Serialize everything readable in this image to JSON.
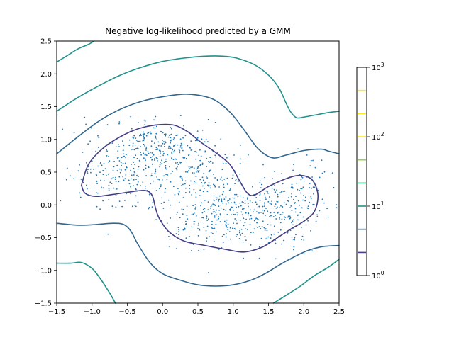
{
  "chart_data": {
    "type": "contour",
    "title": "Negative log-likelihood predicted by a GMM",
    "xlabel": "",
    "ylabel": "",
    "xlim": [
      -1.5,
      2.5
    ],
    "ylim": [
      -1.5,
      2.5
    ],
    "x_ticks": [
      -1.5,
      -1.0,
      -0.5,
      0.0,
      0.5,
      1.0,
      1.5,
      2.0,
      2.5
    ],
    "x_tick_labels": [
      "−1.5",
      "−1.0",
      "−0.5",
      "0.0",
      "0.5",
      "1.0",
      "1.5",
      "2.0",
      "2.5"
    ],
    "y_ticks": [
      -1.5,
      -1.0,
      -0.5,
      0.0,
      0.5,
      1.0,
      1.5,
      2.0,
      2.5
    ],
    "y_tick_labels": [
      "−1.5",
      "−1.0",
      "−0.5",
      "0.0",
      "0.5",
      "1.0",
      "1.5",
      "2.0",
      "2.5"
    ],
    "grid": false,
    "point_color": "#1f77b4",
    "contours": [
      {
        "level": 2.15,
        "color": "#433e85",
        "paths": [
          [
            [
              -1.15,
              0.3
            ],
            [
              -1.05,
              0.62
            ],
            [
              -0.85,
              0.86
            ],
            [
              -0.6,
              1.04
            ],
            [
              -0.35,
              1.16
            ],
            [
              -0.1,
              1.22
            ],
            [
              0.15,
              1.22
            ],
            [
              0.35,
              1.12
            ],
            [
              0.55,
              0.95
            ],
            [
              0.75,
              0.8
            ],
            [
              0.95,
              0.62
            ],
            [
              1.1,
              0.35
            ],
            [
              1.2,
              0.18
            ],
            [
              1.3,
              0.15
            ],
            [
              1.5,
              0.28
            ],
            [
              1.75,
              0.4
            ],
            [
              1.95,
              0.45
            ],
            [
              2.12,
              0.38
            ],
            [
              2.2,
              0.15
            ],
            [
              2.15,
              -0.1
            ],
            [
              2.0,
              -0.25
            ],
            [
              1.8,
              -0.38
            ],
            [
              1.6,
              -0.52
            ],
            [
              1.4,
              -0.65
            ],
            [
              1.15,
              -0.72
            ],
            [
              0.9,
              -0.68
            ],
            [
              0.6,
              -0.62
            ],
            [
              0.3,
              -0.55
            ],
            [
              0.08,
              -0.4
            ],
            [
              -0.05,
              -0.2
            ],
            [
              -0.1,
              -0.05
            ],
            [
              -0.15,
              0.15
            ],
            [
              -0.25,
              0.22
            ],
            [
              -0.45,
              0.2
            ],
            [
              -0.7,
              0.16
            ],
            [
              -0.95,
              0.13
            ],
            [
              -1.1,
              0.18
            ],
            [
              -1.15,
              0.3
            ]
          ]
        ]
      },
      {
        "level": 4.64,
        "color": "#31678e",
        "paths": [
          [
            [
              -1.5,
              0.78
            ],
            [
              -1.2,
              1.04
            ],
            [
              -0.9,
              1.28
            ],
            [
              -0.6,
              1.46
            ],
            [
              -0.3,
              1.58
            ],
            [
              0.0,
              1.65
            ],
            [
              0.35,
              1.69
            ],
            [
              0.7,
              1.62
            ],
            [
              0.95,
              1.42
            ],
            [
              1.15,
              1.15
            ],
            [
              1.35,
              0.86
            ],
            [
              1.55,
              0.72
            ],
            [
              1.75,
              0.76
            ],
            [
              2.0,
              0.83
            ],
            [
              2.25,
              0.85
            ],
            [
              2.35,
              0.82
            ],
            [
              2.5,
              0.78
            ]
          ],
          [
            [
              -1.5,
              -0.28
            ],
            [
              -1.2,
              -0.31
            ],
            [
              -0.95,
              -0.3
            ],
            [
              -0.7,
              -0.28
            ],
            [
              -0.55,
              -0.3
            ],
            [
              -0.45,
              -0.4
            ],
            [
              -0.35,
              -0.6
            ],
            [
              -0.18,
              -0.88
            ],
            [
              0.0,
              -1.05
            ],
            [
              0.25,
              -1.15
            ],
            [
              0.5,
              -1.22
            ],
            [
              0.75,
              -1.24
            ],
            [
              1.0,
              -1.22
            ],
            [
              1.25,
              -1.15
            ],
            [
              1.45,
              -1.05
            ],
            [
              1.65,
              -0.92
            ],
            [
              1.85,
              -0.8
            ],
            [
              2.05,
              -0.7
            ],
            [
              2.25,
              -0.64
            ],
            [
              2.5,
              -0.62
            ]
          ]
        ]
      },
      {
        "level": 10.0,
        "color": "#21918c",
        "paths": [
          [
            [
              -1.5,
              1.43
            ],
            [
              -1.2,
              1.64
            ],
            [
              -0.9,
              1.82
            ],
            [
              -0.6,
              1.98
            ],
            [
              -0.3,
              2.1
            ],
            [
              0.0,
              2.19
            ],
            [
              0.3,
              2.24
            ],
            [
              0.6,
              2.27
            ],
            [
              0.85,
              2.27
            ],
            [
              1.05,
              2.24
            ],
            [
              1.3,
              2.14
            ],
            [
              1.5,
              1.98
            ],
            [
              1.65,
              1.78
            ],
            [
              1.75,
              1.55
            ],
            [
              1.82,
              1.41
            ],
            [
              1.9,
              1.33
            ],
            [
              2.0,
              1.34
            ],
            [
              2.2,
              1.38
            ],
            [
              2.35,
              1.41
            ],
            [
              2.5,
              1.43
            ]
          ],
          [
            [
              -1.5,
              2.18
            ],
            [
              -1.35,
              2.28
            ],
            [
              -1.2,
              2.38
            ],
            [
              -1.05,
              2.45
            ],
            [
              -0.97,
              2.5
            ]
          ],
          [
            [
              -1.5,
              -0.89
            ],
            [
              -1.3,
              -0.89
            ],
            [
              -1.15,
              -0.88
            ],
            [
              -1.0,
              -0.97
            ],
            [
              -0.9,
              -1.1
            ],
            [
              -0.8,
              -1.26
            ],
            [
              -0.72,
              -1.4
            ],
            [
              -0.67,
              -1.5
            ]
          ],
          [
            [
              1.57,
              -1.5
            ],
            [
              1.75,
              -1.38
            ],
            [
              1.95,
              -1.24
            ],
            [
              2.15,
              -1.08
            ],
            [
              2.35,
              -0.95
            ],
            [
              2.5,
              -0.83
            ]
          ]
        ]
      }
    ],
    "scatter_clusters": [
      {
        "center": [
          -0.6,
          0.55
        ],
        "spread": [
          0.4,
          0.33
        ],
        "count": 230,
        "seed": 11
      },
      {
        "center": [
          -0.05,
          0.85
        ],
        "spread": [
          0.26,
          0.24
        ],
        "count": 160,
        "seed": 23
      },
      {
        "center": [
          0.45,
          0.5
        ],
        "spread": [
          0.32,
          0.32
        ],
        "count": 200,
        "seed": 37
      },
      {
        "center": [
          0.8,
          -0.2
        ],
        "spread": [
          0.38,
          0.26
        ],
        "count": 230,
        "seed": 41
      },
      {
        "center": [
          1.55,
          -0.15
        ],
        "spread": [
          0.35,
          0.32
        ],
        "count": 170,
        "seed": 53
      },
      {
        "center": [
          1.85,
          0.15
        ],
        "spread": [
          0.3,
          0.28
        ],
        "count": 110,
        "seed": 67
      }
    ],
    "colorbar": {
      "scale": "log",
      "range": [
        1,
        1000
      ],
      "levels": [
        {
          "value": 2.15,
          "color": "#433e85"
        },
        {
          "value": 4.64,
          "color": "#31678e"
        },
        {
          "value": 10.0,
          "color": "#21918c"
        },
        {
          "value": 21.5,
          "color": "#35b779"
        },
        {
          "value": 46.4,
          "color": "#8fd744"
        },
        {
          "value": 100.0,
          "color": "#fde725"
        },
        {
          "value": 215.4,
          "color": "#fde725"
        },
        {
          "value": 464.2,
          "color": "#fde725"
        }
      ],
      "ticks": [
        {
          "value": 1,
          "base": "10",
          "exp": "0"
        },
        {
          "value": 10,
          "base": "10",
          "exp": "1"
        },
        {
          "value": 100,
          "base": "10",
          "exp": "2"
        },
        {
          "value": 1000,
          "base": "10",
          "exp": "3"
        }
      ]
    }
  }
}
